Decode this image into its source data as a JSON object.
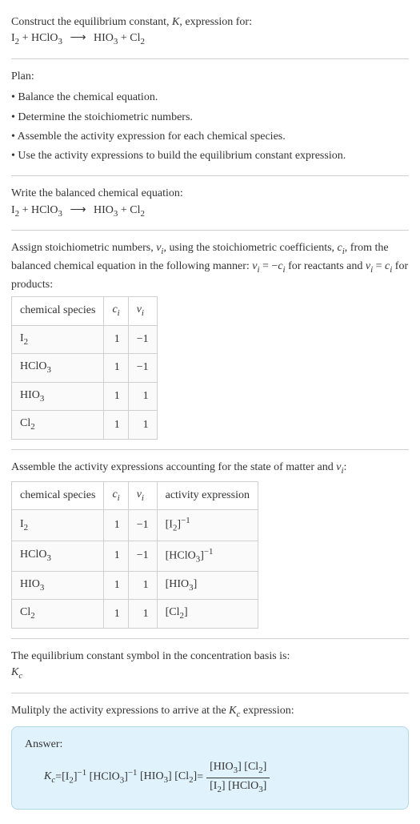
{
  "header": {
    "prompt_pre": "Construct the equilibrium constant, ",
    "prompt_var": "K",
    "prompt_post": ", expression for:"
  },
  "chem_eq": {
    "r1": "I",
    "r1_sub": "2",
    "r2": "HClO",
    "r2_sub": "3",
    "arrow": "⟶",
    "p1": "HIO",
    "p1_sub": "3",
    "p2": "Cl",
    "p2_sub": "2"
  },
  "plan": {
    "title": "Plan:",
    "items": [
      "Balance the chemical equation.",
      "Determine the stoichiometric numbers.",
      "Assemble the activity expression for each chemical species.",
      "Use the activity expressions to build the equilibrium constant expression."
    ]
  },
  "balanced_title": "Write the balanced chemical equation:",
  "stoich": {
    "intro_a": "Assign stoichiometric numbers, ",
    "nu": "ν",
    "nu_sub": "i",
    "intro_b": ", using the stoichiometric coefficients, ",
    "c": "c",
    "c_sub": "i",
    "intro_c": ", from the balanced chemical equation in the following manner: ",
    "rel_react_lhs": "ν",
    "rel_react_eq": " = −",
    "rel_react_rhs": "c",
    "intro_d": " for reactants and ",
    "rel_prod_lhs": "ν",
    "rel_prod_eq": " = ",
    "rel_prod_rhs": "c",
    "intro_e": " for products:"
  },
  "table1": {
    "h0": "chemical species",
    "h1_sym": "c",
    "h1_sub": "i",
    "h2_sym": "ν",
    "h2_sub": "i",
    "rows": [
      {
        "sp": "I",
        "sub": "2",
        "c": "1",
        "nu": "−1"
      },
      {
        "sp": "HClO",
        "sub": "3",
        "c": "1",
        "nu": "−1"
      },
      {
        "sp": "HIO",
        "sub": "3",
        "c": "1",
        "nu": "1"
      },
      {
        "sp": "Cl",
        "sub": "2",
        "c": "1",
        "nu": "1"
      }
    ]
  },
  "activity_intro_a": "Assemble the activity expressions accounting for the state of matter and ",
  "activity_intro_b": ":",
  "table2": {
    "h0": "chemical species",
    "h1_sym": "c",
    "h1_sub": "i",
    "h2_sym": "ν",
    "h2_sub": "i",
    "h3": "activity expression",
    "rows": [
      {
        "sp": "I",
        "sub": "2",
        "c": "1",
        "nu": "−1",
        "ae_l": "[I",
        "ae_sub": "2",
        "ae_r": "]",
        "ae_exp": "−1"
      },
      {
        "sp": "HClO",
        "sub": "3",
        "c": "1",
        "nu": "−1",
        "ae_l": "[HClO",
        "ae_sub": "3",
        "ae_r": "]",
        "ae_exp": "−1"
      },
      {
        "sp": "HIO",
        "sub": "3",
        "c": "1",
        "nu": "1",
        "ae_l": "[HIO",
        "ae_sub": "3",
        "ae_r": "]",
        "ae_exp": ""
      },
      {
        "sp": "Cl",
        "sub": "2",
        "c": "1",
        "nu": "1",
        "ae_l": "[Cl",
        "ae_sub": "2",
        "ae_r": "]",
        "ae_exp": ""
      }
    ]
  },
  "kc_intro": "The equilibrium constant symbol in the concentration basis is:",
  "kc_sym": "K",
  "kc_sub": "c",
  "mult_a": "Mulitply the activity expressions to arrive at the ",
  "mult_b": " expression:",
  "answer": {
    "label": "Answer:",
    "lhs_sym": "K",
    "lhs_sub": "c",
    "eq": " = ",
    "t1_l": "[I",
    "t1_sub": "2",
    "t1_r": "]",
    "t1_exp": "−1",
    "t2_l": "[HClO",
    "t2_sub": "3",
    "t2_r": "]",
    "t2_exp": "−1",
    "t3_l": "[HIO",
    "t3_sub": "3",
    "t3_r": "]",
    "t4_l": "[Cl",
    "t4_sub": "2",
    "t4_r": "]",
    "eq2": " = ",
    "num_a_l": "[HIO",
    "num_a_sub": "3",
    "num_a_r": "]",
    "num_b_l": "[Cl",
    "num_b_sub": "2",
    "num_b_r": "]",
    "den_a_l": "[I",
    "den_a_sub": "2",
    "den_a_r": "]",
    "den_b_l": "[HClO",
    "den_b_sub": "3",
    "den_b_r": "]"
  }
}
